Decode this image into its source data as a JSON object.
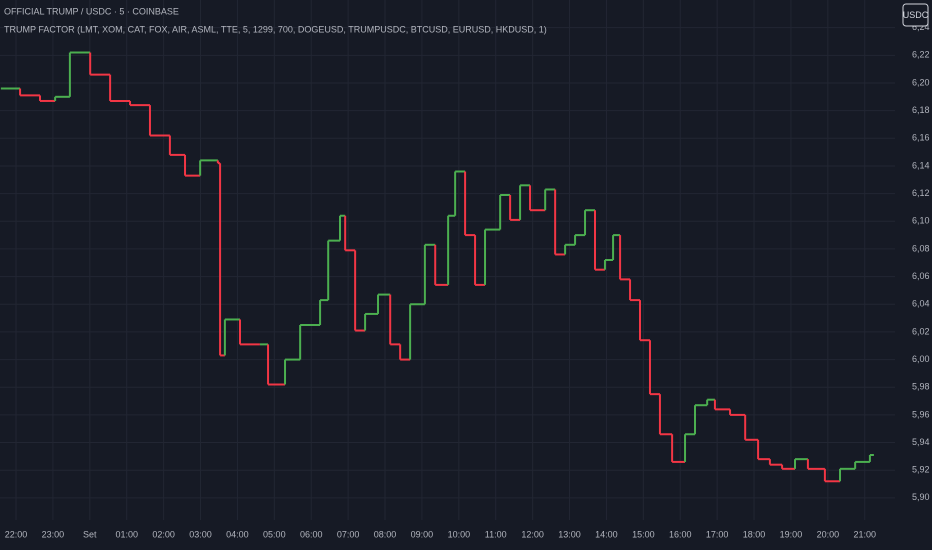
{
  "chart_data": {
    "type": "step-line",
    "title": "OFFICIAL TRUMP / USDC · 5 · COINBASE",
    "subtitle": "TRUMP FACTOR (LMT, XOM, CAT, FOX, AIR, ASML, TTE, 5, 1299, 700, DOGEUSD, TRUMPUSDC, BTCUSD, EURUSD, HKDUSD, 1)",
    "currency": "USDC",
    "up_color": "#4caf50",
    "down_color": "#f23645",
    "grid": true,
    "x": [
      -0.41,
      0.11,
      0.65,
      1.06,
      1.46,
      2.01,
      2.55,
      3.09,
      3.63,
      4.17,
      4.58,
      4.99,
      5.47,
      5.53,
      5.66,
      6.07,
      6.61,
      6.83,
      7.29,
      7.7,
      8.24,
      8.46,
      8.78,
      8.92,
      9.19,
      9.46,
      9.81,
      10.14,
      10.41,
      10.68,
      11.08,
      11.36,
      11.71,
      11.9,
      12.17,
      12.44,
      12.71,
      13.12,
      13.39,
      13.66,
      13.93,
      14.34,
      14.61,
      14.88,
      15.15,
      15.42,
      15.69,
      15.96,
      16.18,
      16.37,
      16.64,
      16.91,
      17.18,
      17.45,
      17.78,
      18.13,
      18.4,
      18.73,
      18.94,
      19.35,
      19.76,
      20.11,
      20.43,
      20.76,
      21.11,
      21.46,
      21.92,
      22.33,
      22.74,
      23.14
    ],
    "values": [
      6.196,
      6.191,
      6.187,
      6.19,
      6.222,
      6.206,
      6.187,
      6.184,
      6.162,
      6.148,
      6.133,
      6.144,
      6.142,
      6.003,
      6.029,
      6.011,
      6.011,
      5.982,
      6.0,
      6.025,
      6.043,
      6.086,
      6.104,
      6.079,
      6.021,
      6.033,
      6.047,
      6.011,
      6.0,
      6.04,
      6.083,
      6.054,
      6.104,
      6.136,
      6.09,
      6.054,
      6.094,
      6.119,
      6.101,
      6.126,
      6.108,
      6.123,
      6.076,
      6.083,
      6.09,
      6.108,
      6.065,
      6.072,
      6.09,
      6.058,
      6.043,
      6.014,
      5.975,
      5.946,
      5.926,
      5.946,
      5.967,
      5.971,
      5.964,
      5.96,
      5.942,
      5.928,
      5.924,
      5.921,
      5.928,
      5.921,
      5.912,
      5.921,
      5.926,
      5.931
    ],
    "xlim": [
      -0.434,
      23.82
    ],
    "xticks": [
      {
        "value": 0,
        "label": "22:00"
      },
      {
        "value": 1,
        "label": "23:00"
      },
      {
        "value": 2,
        "label": "Set"
      },
      {
        "value": 3,
        "label": "01:00"
      },
      {
        "value": 4,
        "label": "02:00"
      },
      {
        "value": 5,
        "label": "03:00"
      },
      {
        "value": 6,
        "label": "04:00"
      },
      {
        "value": 7,
        "label": "05:00"
      },
      {
        "value": 8,
        "label": "06:00"
      },
      {
        "value": 9,
        "label": "07:00"
      },
      {
        "value": 10,
        "label": "08:00"
      },
      {
        "value": 11,
        "label": "09:00"
      },
      {
        "value": 12,
        "label": "10:00"
      },
      {
        "value": 13,
        "label": "11:00"
      },
      {
        "value": 14,
        "label": "12:00"
      },
      {
        "value": 15,
        "label": "13:00"
      },
      {
        "value": 16,
        "label": "14:00"
      },
      {
        "value": 17,
        "label": "15:00"
      },
      {
        "value": 18,
        "label": "16:00"
      },
      {
        "value": 19,
        "label": "17:00"
      },
      {
        "value": 20,
        "label": "18:00"
      },
      {
        "value": 21,
        "label": "19:00"
      },
      {
        "value": 22,
        "label": "20:00"
      },
      {
        "value": 23,
        "label": "21:00"
      }
    ],
    "ylim": [
      5.884,
      6.26
    ],
    "yticks": [
      {
        "value": 5.9,
        "label": "5,90"
      },
      {
        "value": 5.92,
        "label": "5,92"
      },
      {
        "value": 5.94,
        "label": "5,94"
      },
      {
        "value": 5.96,
        "label": "5,96"
      },
      {
        "value": 5.98,
        "label": "5,98"
      },
      {
        "value": 6.0,
        "label": "6,00"
      },
      {
        "value": 6.02,
        "label": "6,02"
      },
      {
        "value": 6.04,
        "label": "6,04"
      },
      {
        "value": 6.06,
        "label": "6,06"
      },
      {
        "value": 6.08,
        "label": "6,08"
      },
      {
        "value": 6.1,
        "label": "6,10"
      },
      {
        "value": 6.12,
        "label": "6,12"
      },
      {
        "value": 6.14,
        "label": "6,14"
      },
      {
        "value": 6.16,
        "label": "6,16"
      },
      {
        "value": 6.18,
        "label": "6,18"
      },
      {
        "value": 6.2,
        "label": "6,20"
      },
      {
        "value": 6.22,
        "label": "6,22"
      },
      {
        "value": 6.24,
        "label": "6,24"
      }
    ]
  }
}
